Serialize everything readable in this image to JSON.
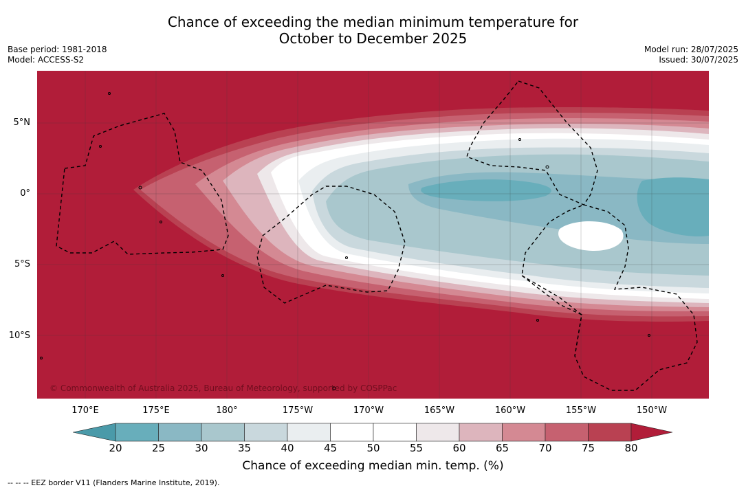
{
  "title_line1": "Chance of exceeding the median minimum temperature for",
  "title_line2": "October to December 2025",
  "base_period": "Base period: 1981-2018",
  "model": "Model: ACCESS-S2",
  "model_run": "Model run: 28/07/2025",
  "issued": "Issued: 30/07/2025",
  "copyright": "© Commonwealth of Australia 2025, Bureau of Meteorology, supported by COSPPac",
  "lat_labels": [
    "5°N",
    "0°",
    "5°S",
    "10°S"
  ],
  "lon_labels": [
    "170°E",
    "175°E",
    "180°",
    "175°W",
    "170°W",
    "165°W",
    "160°W",
    "155°W",
    "150°W"
  ],
  "colorbar": {
    "label": "Chance of exceeding median min. temp. (%)",
    "ticks": [
      "20",
      "25",
      "30",
      "35",
      "40",
      "45",
      "50",
      "55",
      "60",
      "65",
      "70",
      "75",
      "80"
    ],
    "colors": [
      "#4a9aa9",
      "#68aebb",
      "#8ab8c4",
      "#a9c7cd",
      "#c9d8dd",
      "#eaeef0",
      "#ffffff",
      "#ffffff",
      "#eee8ea",
      "#ddb5bd",
      "#d48993",
      "#c66170",
      "#b94152",
      "#b11d39"
    ]
  },
  "footnote": "--  --  -- EEZ border V11 (Flanders Marine Institute, 2019).",
  "colors": {
    "warm_background": "#b11d39",
    "cool_core": "#68aebb"
  }
}
